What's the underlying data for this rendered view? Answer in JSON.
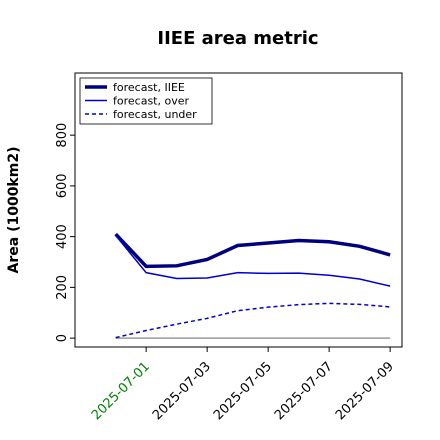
{
  "chart_data": {
    "type": "line",
    "title": "IIEE area metric",
    "ylabel": "Area (1000km2)",
    "x": [
      "2025-06-30",
      "2025-07-01",
      "2025-07-02",
      "2025-07-03",
      "2025-07-04",
      "2025-07-05",
      "2025-07-06",
      "2025-07-07",
      "2025-07-08",
      "2025-07-09"
    ],
    "series": [
      {
        "name": "forecast, IIEE",
        "color": "#00007f",
        "width": 3.5,
        "dash": "none",
        "values": [
          410,
          283,
          285,
          310,
          365,
          375,
          385,
          380,
          362,
          328
        ]
      },
      {
        "name": "forecast, over",
        "color": "#0000cc",
        "width": 1.5,
        "dash": "none",
        "values": [
          405,
          258,
          235,
          237,
          258,
          255,
          256,
          248,
          233,
          205
        ]
      },
      {
        "name": "forecast, under",
        "color": "#0000cc",
        "width": 1.5,
        "dash": "4,3",
        "values": [
          2,
          30,
          55,
          78,
          108,
          122,
          132,
          137,
          133,
          123
        ]
      }
    ],
    "hline": 0,
    "hline_color": "#999999",
    "xlim": [
      "2025-06-28T16:00",
      "2025-07-09T09:20"
    ],
    "xticks": [
      {
        "value": "2025-07-01",
        "label": "2025-07-01",
        "color": "green"
      },
      {
        "value": "2025-07-03",
        "label": "2025-07-03",
        "color": "black"
      },
      {
        "value": "2025-07-05",
        "label": "2025-07-05",
        "color": "black"
      },
      {
        "value": "2025-07-07",
        "label": "2025-07-07",
        "color": "black"
      },
      {
        "value": "2025-07-09",
        "label": "2025-07-09",
        "color": "black"
      }
    ],
    "ylim": [
      -35,
      1045
    ],
    "yticks": [
      0,
      200,
      400,
      600,
      800
    ],
    "legend": "upper left",
    "grid": false
  }
}
